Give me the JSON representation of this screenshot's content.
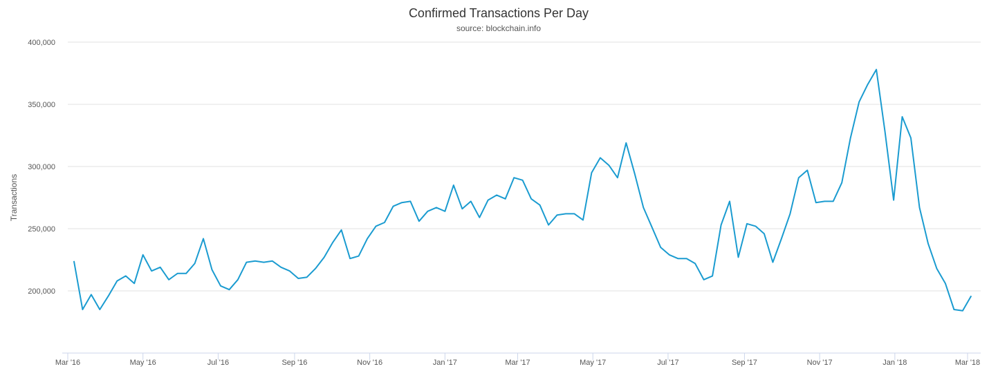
{
  "chart_data": {
    "type": "line",
    "title": "Confirmed Transactions Per Day",
    "subtitle": "source: blockchain.info",
    "xlabel": "",
    "ylabel": "Transactions",
    "ylim": [
      150000,
      400000
    ],
    "xlim": [
      "2016-03-01",
      "2018-03-12"
    ],
    "grid": true,
    "line_color": "#1a9bd0",
    "y_ticks": [
      200000,
      250000,
      300000,
      350000,
      400000
    ],
    "y_tick_labels": [
      "200,000",
      "250,000",
      "300,000",
      "350,000",
      "400,000"
    ],
    "x_ticks": [
      "2016-03-01",
      "2016-05-01",
      "2016-07-01",
      "2016-09-01",
      "2016-11-01",
      "2017-01-01",
      "2017-03-01",
      "2017-05-01",
      "2017-07-01",
      "2017-09-01",
      "2017-11-01",
      "2018-01-01",
      "2018-03-01"
    ],
    "x_tick_labels": [
      "Mar '16",
      "May '16",
      "Jul '16",
      "Sep '16",
      "Nov '16",
      "Jan '17",
      "Mar '17",
      "May '17",
      "Jul '17",
      "Sep '17",
      "Nov '17",
      "Jan '18",
      "Mar '18"
    ],
    "series": [
      {
        "x": [
          "2016-03-06",
          "2016-03-13",
          "2016-03-20",
          "2016-03-27",
          "2016-04-03",
          "2016-04-10",
          "2016-04-17",
          "2016-04-24",
          "2016-05-01",
          "2016-05-08",
          "2016-05-15",
          "2016-05-22",
          "2016-05-29",
          "2016-06-05",
          "2016-06-12",
          "2016-06-19",
          "2016-06-26",
          "2016-07-03",
          "2016-07-10",
          "2016-07-17",
          "2016-07-24",
          "2016-07-31",
          "2016-08-07",
          "2016-08-14",
          "2016-08-21",
          "2016-08-28",
          "2016-09-04",
          "2016-09-11",
          "2016-09-18",
          "2016-09-25",
          "2016-10-02",
          "2016-10-09",
          "2016-10-16",
          "2016-10-23",
          "2016-10-30",
          "2016-11-06",
          "2016-11-13",
          "2016-11-20",
          "2016-11-27",
          "2016-12-04",
          "2016-12-11",
          "2016-12-18",
          "2016-12-25",
          "2017-01-01",
          "2017-01-08",
          "2017-01-15",
          "2017-01-22",
          "2017-01-29",
          "2017-02-05",
          "2017-02-12",
          "2017-02-19",
          "2017-02-26",
          "2017-03-05",
          "2017-03-12",
          "2017-03-19",
          "2017-03-26",
          "2017-04-02",
          "2017-04-09",
          "2017-04-16",
          "2017-04-23",
          "2017-04-30",
          "2017-05-07",
          "2017-05-14",
          "2017-05-21",
          "2017-05-28",
          "2017-06-04",
          "2017-06-11",
          "2017-06-18",
          "2017-06-25",
          "2017-07-02",
          "2017-07-09",
          "2017-07-16",
          "2017-07-23",
          "2017-07-30",
          "2017-08-06",
          "2017-08-13",
          "2017-08-20",
          "2017-08-27",
          "2017-09-03",
          "2017-09-10",
          "2017-09-17",
          "2017-09-24",
          "2017-10-01",
          "2017-10-08",
          "2017-10-15",
          "2017-10-22",
          "2017-10-29",
          "2017-11-05",
          "2017-11-12",
          "2017-11-19",
          "2017-11-26",
          "2017-12-03",
          "2017-12-10",
          "2017-12-17",
          "2017-12-24",
          "2017-12-31",
          "2018-01-07",
          "2018-01-14",
          "2018-01-21",
          "2018-01-28",
          "2018-02-04",
          "2018-02-11",
          "2018-02-18",
          "2018-02-25",
          "2018-03-04"
        ],
        "y": [
          224000,
          185000,
          197000,
          185000,
          196000,
          208000,
          212000,
          206000,
          229000,
          216000,
          219000,
          209000,
          214000,
          214000,
          222000,
          242000,
          217000,
          204000,
          201000,
          209000,
          223000,
          224000,
          223000,
          224000,
          219000,
          216000,
          210000,
          211000,
          218000,
          227000,
          239000,
          249000,
          226000,
          228000,
          242000,
          252000,
          255000,
          268000,
          271000,
          272000,
          256000,
          264000,
          267000,
          264000,
          285000,
          266000,
          272000,
          259000,
          273000,
          277000,
          274000,
          291000,
          289000,
          274000,
          269000,
          253000,
          261000,
          262000,
          262000,
          257000,
          295000,
          307000,
          301000,
          291000,
          319000,
          294000,
          267000,
          251000,
          235000,
          229000,
          226000,
          226000,
          222000,
          209000,
          212000,
          253000,
          272000,
          227000,
          254000,
          252000,
          246000,
          223000,
          242000,
          262000,
          291000,
          297000,
          271000,
          272000,
          272000,
          287000,
          323000,
          352000,
          366000,
          378000,
          328000,
          273000,
          340000,
          323000,
          267000,
          238000,
          218000,
          206000,
          185000,
          184000,
          196000
        ]
      }
    ]
  }
}
